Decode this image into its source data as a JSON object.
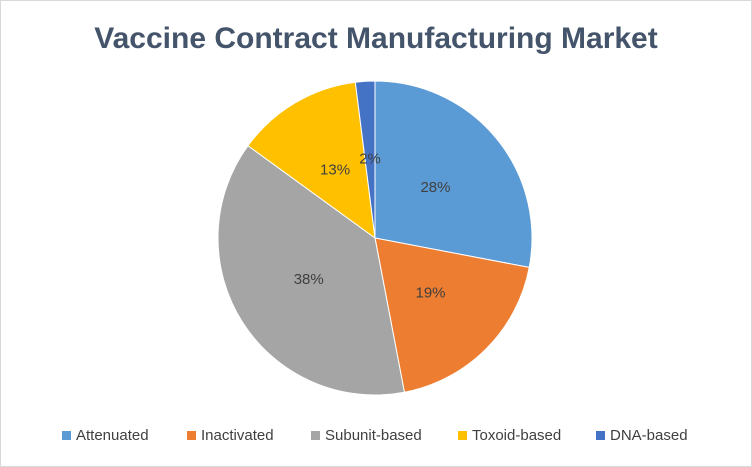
{
  "chart_data": {
    "type": "pie",
    "title": "Vaccine Contract Manufacturing Market",
    "categories": [
      "Attenuated",
      "Inactivated",
      "Subunit-based",
      "Toxoid-based",
      "DNA-based"
    ],
    "values": [
      28,
      19,
      38,
      13,
      2
    ],
    "value_labels": [
      "28%",
      "19%",
      "38%",
      "13%",
      "2%"
    ],
    "colors": [
      "#5b9bd5",
      "#ed7d31",
      "#a5a5a5",
      "#ffc000",
      "#4472c4"
    ],
    "legend": "bottom"
  }
}
